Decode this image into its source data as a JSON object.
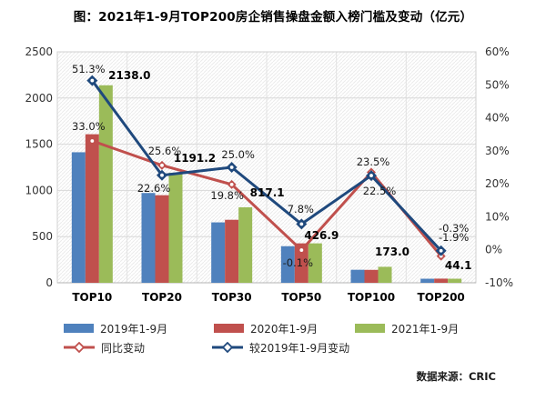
{
  "title": "图：2021年1-9月TOP200房企销售操盘金额入榜门槛及变动（亿元）",
  "source": "数据来源：CRIC",
  "colors": {
    "bar_2019": "#4F81BD",
    "bar_2020": "#C0504D",
    "bar_2021": "#9BBB59",
    "line_yoy": "#C0504D",
    "line_vs2019": "#1F497D",
    "grid": "#dcdcdc",
    "hatch": "#ebebeb",
    "tick_text": "#333333",
    "label_text": "#000000"
  },
  "chart_data": {
    "type": "combo-bar-line",
    "title": "图：2021年1-9月TOP200房企销售操盘金额入榜门槛及变动（亿元）",
    "categories": [
      "TOP10",
      "TOP20",
      "TOP30",
      "TOP50",
      "TOP100",
      "TOP200"
    ],
    "bar_series": [
      {
        "name": "2019年1-9月",
        "color": "#4F81BD",
        "values": [
          1413,
          972,
          654,
          396,
          141,
          44
        ]
      },
      {
        "name": "2020年1-9月",
        "color": "#C0504D",
        "values": [
          1608,
          948,
          682,
          427,
          140,
          45
        ]
      },
      {
        "name": "2021年1-9月",
        "color": "#9BBB59",
        "values": [
          2138.0,
          1191.2,
          817.1,
          426.9,
          173.0,
          44.1
        ]
      }
    ],
    "bar_value_labels": [
      "2138.0",
      "1191.2",
      "817.1",
      "426.9",
      "173.0",
      "44.1"
    ],
    "line_series": [
      {
        "name": "同比变动",
        "color": "#C0504D",
        "values": [
          33.0,
          25.6,
          19.8,
          -0.1,
          23.5,
          -1.9
        ],
        "labels": [
          "33.0%",
          "25.6%",
          "19.8%",
          "-0.1%",
          "23.5%",
          "-1.9%"
        ]
      },
      {
        "name": "较2019年1-9月变动",
        "color": "#1F497D",
        "values": [
          51.3,
          22.6,
          25.0,
          7.8,
          22.5,
          -0.3
        ],
        "labels": [
          "51.3%",
          "22.6%",
          "25.0%",
          "7.8%",
          "22.5%",
          "-0.3%"
        ]
      }
    ],
    "left_axis": {
      "min": 0,
      "max": 2500,
      "step": 500,
      "ticks": [
        "0",
        "500",
        "1000",
        "1500",
        "2000",
        "2500"
      ]
    },
    "right_axis": {
      "min": -10,
      "max": 60,
      "step": 10,
      "ticks": [
        "-10%",
        "0%",
        "10%",
        "20%",
        "30%",
        "40%",
        "50%",
        "60%"
      ]
    },
    "grid": true,
    "legend_position": "bottom"
  }
}
